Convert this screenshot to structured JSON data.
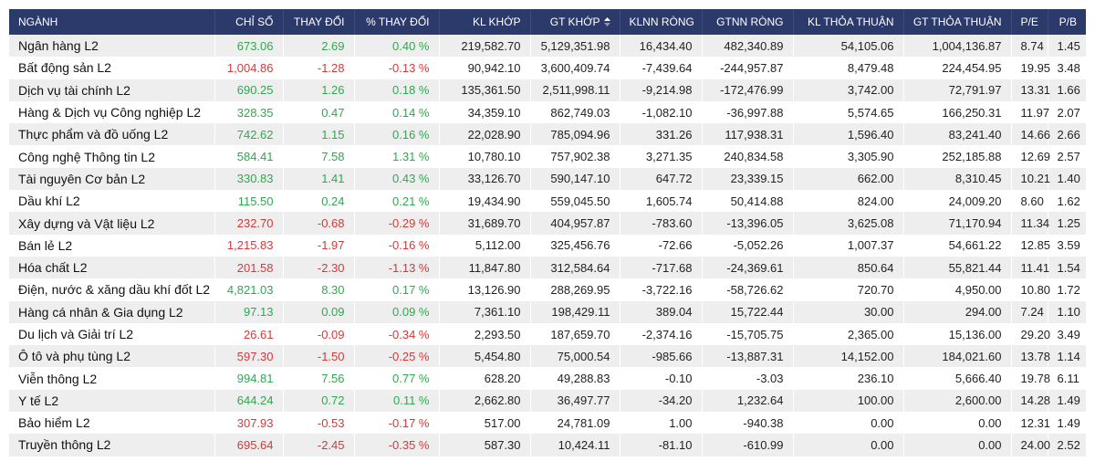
{
  "colors": {
    "header_bg": "#2c3a6b",
    "up": "#2fa84f",
    "down": "#d23a3a",
    "row_stripe": "#eeeeee"
  },
  "columns": [
    "NGÀNH",
    "CHỈ SỐ",
    "THAY ĐỔI",
    "% THAY ĐỔI",
    "KL KHỚP",
    "GT KHỚP",
    "KLNN RÒNG",
    "GTNN RÒNG",
    "KL THỎA THUẬN",
    "GT THỎA THUẬN",
    "P/E",
    "P/B"
  ],
  "sorted_column_icon": "sort-icon",
  "rows": [
    {
      "name": "Ngân hàng L2",
      "index": "673.06",
      "change": "2.69",
      "pct": "0.40 %",
      "dir": "up",
      "kl_khop": "219,582.70",
      "gt_khop": "5,129,351.98",
      "klnn": "16,434.40",
      "gtnn": "482,340.89",
      "kl_tt": "54,105.06",
      "gt_tt": "1,004,136.87",
      "pe": "8.74",
      "pb": "1.45"
    },
    {
      "name": "Bất động sản L2",
      "index": "1,004.86",
      "change": "-1.28",
      "pct": "-0.13 %",
      "dir": "down",
      "kl_khop": "90,942.10",
      "gt_khop": "3,600,409.74",
      "klnn": "-7,439.64",
      "gtnn": "-244,957.87",
      "kl_tt": "8,479.48",
      "gt_tt": "224,454.95",
      "pe": "19.95",
      "pb": "3.48"
    },
    {
      "name": "Dịch vụ tài chính L2",
      "index": "690.25",
      "change": "1.26",
      "pct": "0.18 %",
      "dir": "up",
      "kl_khop": "135,361.50",
      "gt_khop": "2,511,998.11",
      "klnn": "-9,214.98",
      "gtnn": "-172,476.99",
      "kl_tt": "3,742.00",
      "gt_tt": "72,791.97",
      "pe": "13.31",
      "pb": "1.66"
    },
    {
      "name": "Hàng & Dịch vụ Công nghiệp L2",
      "index": "328.35",
      "change": "0.47",
      "pct": "0.14 %",
      "dir": "up",
      "kl_khop": "34,359.10",
      "gt_khop": "862,749.03",
      "klnn": "-1,082.10",
      "gtnn": "-36,997.88",
      "kl_tt": "5,574.65",
      "gt_tt": "166,250.31",
      "pe": "11.97",
      "pb": "2.07"
    },
    {
      "name": "Thực phẩm và đồ uống L2",
      "index": "742.62",
      "change": "1.15",
      "pct": "0.16 %",
      "dir": "up",
      "kl_khop": "22,028.90",
      "gt_khop": "785,094.96",
      "klnn": "331.26",
      "gtnn": "117,938.31",
      "kl_tt": "1,596.40",
      "gt_tt": "83,241.40",
      "pe": "14.66",
      "pb": "2.66"
    },
    {
      "name": "Công nghệ Thông tin L2",
      "index": "584.41",
      "change": "7.58",
      "pct": "1.31 %",
      "dir": "up",
      "kl_khop": "10,780.10",
      "gt_khop": "757,902.38",
      "klnn": "3,271.35",
      "gtnn": "240,834.58",
      "kl_tt": "3,305.90",
      "gt_tt": "252,185.88",
      "pe": "12.69",
      "pb": "2.57"
    },
    {
      "name": "Tài nguyên Cơ bản L2",
      "index": "330.83",
      "change": "1.41",
      "pct": "0.43 %",
      "dir": "up",
      "kl_khop": "33,126.70",
      "gt_khop": "590,147.10",
      "klnn": "647.72",
      "gtnn": "23,339.15",
      "kl_tt": "662.00",
      "gt_tt": "8,310.45",
      "pe": "10.21",
      "pb": "1.40"
    },
    {
      "name": "Dầu khí L2",
      "index": "115.50",
      "change": "0.24",
      "pct": "0.21 %",
      "dir": "up",
      "kl_khop": "19,434.90",
      "gt_khop": "559,045.50",
      "klnn": "1,605.74",
      "gtnn": "50,414.88",
      "kl_tt": "824.00",
      "gt_tt": "24,009.20",
      "pe": "8.60",
      "pb": "1.62"
    },
    {
      "name": "Xây dựng và Vật liệu L2",
      "index": "232.70",
      "change": "-0.68",
      "pct": "-0.29 %",
      "dir": "down",
      "kl_khop": "31,689.70",
      "gt_khop": "404,957.87",
      "klnn": "-783.60",
      "gtnn": "-13,396.05",
      "kl_tt": "3,625.08",
      "gt_tt": "71,170.94",
      "pe": "11.34",
      "pb": "1.25"
    },
    {
      "name": "Bán lẻ L2",
      "index": "1,215.83",
      "change": "-1.97",
      "pct": "-0.16 %",
      "dir": "down",
      "kl_khop": "5,112.00",
      "gt_khop": "325,456.76",
      "klnn": "-72.66",
      "gtnn": "-5,052.26",
      "kl_tt": "1,007.37",
      "gt_tt": "54,661.22",
      "pe": "12.85",
      "pb": "3.59"
    },
    {
      "name": "Hóa chất L2",
      "index": "201.58",
      "change": "-2.30",
      "pct": "-1.13 %",
      "dir": "down",
      "kl_khop": "11,847.80",
      "gt_khop": "312,584.64",
      "klnn": "-717.68",
      "gtnn": "-24,369.61",
      "kl_tt": "850.64",
      "gt_tt": "55,821.44",
      "pe": "11.41",
      "pb": "1.54"
    },
    {
      "name": "Điện, nước & xăng dầu khí đốt L2",
      "index": "4,821.03",
      "change": "8.30",
      "pct": "0.17 %",
      "dir": "up",
      "kl_khop": "13,126.90",
      "gt_khop": "288,269.95",
      "klnn": "-3,722.16",
      "gtnn": "-58,726.62",
      "kl_tt": "720.70",
      "gt_tt": "4,950.00",
      "pe": "10.80",
      "pb": "1.72"
    },
    {
      "name": "Hàng cá nhân & Gia dụng L2",
      "index": "97.13",
      "change": "0.09",
      "pct": "0.09 %",
      "dir": "up",
      "kl_khop": "7,361.10",
      "gt_khop": "198,429.11",
      "klnn": "389.04",
      "gtnn": "15,722.44",
      "kl_tt": "30.00",
      "gt_tt": "294.00",
      "pe": "7.24",
      "pb": "1.10"
    },
    {
      "name": "Du lịch và Giải trí L2",
      "index": "26.61",
      "change": "-0.09",
      "pct": "-0.34 %",
      "dir": "down",
      "kl_khop": "2,293.50",
      "gt_khop": "187,659.70",
      "klnn": "-2,374.16",
      "gtnn": "-15,705.75",
      "kl_tt": "2,365.00",
      "gt_tt": "15,136.00",
      "pe": "29.20",
      "pb": "3.49"
    },
    {
      "name": "Ô tô và phụ tùng L2",
      "index": "597.30",
      "change": "-1.50",
      "pct": "-0.25 %",
      "dir": "down",
      "kl_khop": "5,454.80",
      "gt_khop": "75,000.54",
      "klnn": "-985.66",
      "gtnn": "-13,887.31",
      "kl_tt": "14,152.00",
      "gt_tt": "184,021.60",
      "pe": "13.78",
      "pb": "1.14"
    },
    {
      "name": "Viễn thông L2",
      "index": "994.81",
      "change": "7.56",
      "pct": "0.77 %",
      "dir": "up",
      "kl_khop": "628.20",
      "gt_khop": "49,288.83",
      "klnn": "-0.10",
      "gtnn": "-3.03",
      "kl_tt": "236.10",
      "gt_tt": "5,666.40",
      "pe": "19.78",
      "pb": "6.11"
    },
    {
      "name": "Y tế L2",
      "index": "644.24",
      "change": "0.72",
      "pct": "0.11 %",
      "dir": "up",
      "kl_khop": "2,662.80",
      "gt_khop": "36,497.77",
      "klnn": "-34.20",
      "gtnn": "1,232.64",
      "kl_tt": "100.00",
      "gt_tt": "2,600.00",
      "pe": "14.28",
      "pb": "1.49"
    },
    {
      "name": "Bảo hiểm L2",
      "index": "307.93",
      "change": "-0.53",
      "pct": "-0.17 %",
      "dir": "down",
      "kl_khop": "517.00",
      "gt_khop": "24,781.09",
      "klnn": "1.00",
      "gtnn": "-940.38",
      "kl_tt": "0.00",
      "gt_tt": "0.00",
      "pe": "12.31",
      "pb": "1.49"
    },
    {
      "name": "Truyền thông L2",
      "index": "695.64",
      "change": "-2.45",
      "pct": "-0.35 %",
      "dir": "down",
      "kl_khop": "587.30",
      "gt_khop": "10,424.11",
      "klnn": "-81.10",
      "gtnn": "-610.99",
      "kl_tt": "0.00",
      "gt_tt": "0.00",
      "pe": "24.00",
      "pb": "2.52"
    }
  ]
}
